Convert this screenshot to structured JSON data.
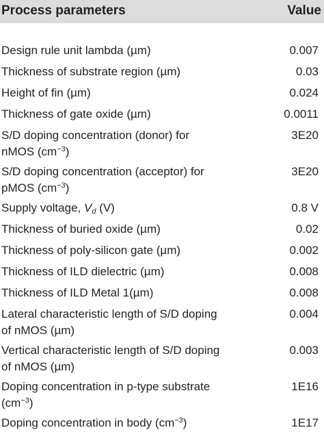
{
  "header": {
    "param_label": "Process parameters",
    "value_label": "Value"
  },
  "rows": [
    {
      "param": "Design rule unit lambda (µm)",
      "value": "0.007"
    },
    {
      "param": "Thickness of substrate region (µm)",
      "value": "0.03"
    },
    {
      "param": "Height of fin (µm)",
      "value": "0.024"
    },
    {
      "param": "Thickness of gate oxide (µm)",
      "value": "0.0011"
    },
    {
      "param_line1": "S/D doping concentration (donor) for",
      "param_line2": "nMOS (cm",
      "param_sup": "−3",
      "param_end": ")",
      "value": "3E20"
    },
    {
      "param_line1": "S/D doping concentration (acceptor) for",
      "param_line2": "pMOS (cm",
      "param_sup": "−3",
      "param_end": ")",
      "value": "3E20"
    },
    {
      "param_pre": "Supply voltage, ",
      "param_var": "V",
      "param_sub": "d",
      "param_end": " (V)",
      "value": "0.8 V"
    },
    {
      "param": "Thickness of buried oxide (µm)",
      "value": "0.02"
    },
    {
      "param": "Thickness of poly-silicon gate (µm)",
      "value": "0.002"
    },
    {
      "param": "Thickness of ILD dielectric (µm)",
      "value": "0.008"
    },
    {
      "param": "Thickness of ILD Metal 1(µm)",
      "value": "0.008"
    },
    {
      "param_line1": "Lateral characteristic length of S/D doping",
      "param_line2": "of nMOS (µm)",
      "value": "0.004"
    },
    {
      "param_line1": "Vertical characteristic length of S/D doping",
      "param_line2": "of nMOS (µm)",
      "value": "0.003"
    },
    {
      "param_line1": "Doping concentration in p-type substrate",
      "param_line2": "(cm",
      "param_sup": "−3",
      "param_end": ")",
      "value": "1E16"
    },
    {
      "param_pre": "Doping concentration in body (cm",
      "param_sup": "−3",
      "param_end": ")",
      "value": "1E17"
    }
  ]
}
